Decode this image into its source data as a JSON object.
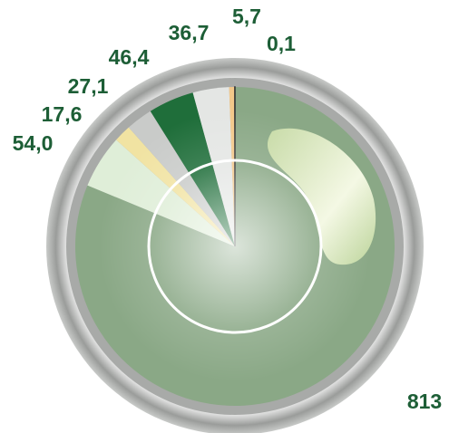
{
  "chart_data": {
    "type": "pie",
    "values": [
      813,
      54.0,
      17.6,
      27.1,
      46.4,
      36.7,
      5.7,
      0.1
    ],
    "value_labels": [
      "813",
      "54,0",
      "17,6",
      "27,1",
      "46,4",
      "36,7",
      "5,7",
      "0,1"
    ],
    "colors": [
      "#8aa886",
      "#dfeed8",
      "#f1e3a2",
      "#c9cbc9",
      "#1f6e3a",
      "#e4e6e4",
      "#f3c88a",
      "#333333"
    ]
  }
}
